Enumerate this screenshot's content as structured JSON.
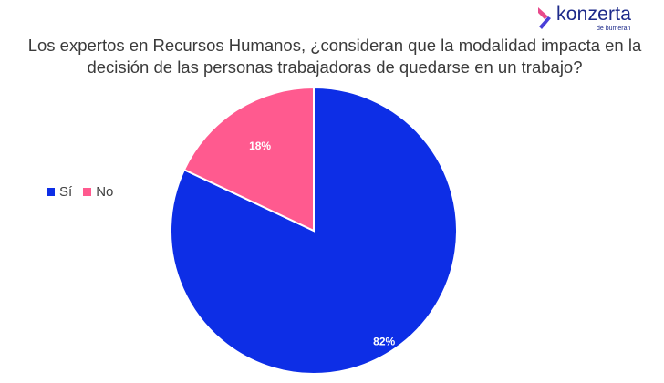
{
  "logo": {
    "wordmark": "konzerta",
    "sub": "de bumeran",
    "colors": {
      "mark_top": "#e84a8c",
      "mark_bottom": "#4a3fd8",
      "text": "#1d2a8a"
    }
  },
  "chart_data": {
    "type": "pie",
    "title": "Los expertos en Recursos Humanos, ¿consideran que la modalidad impacta en la decisión de las personas trabajadoras de quedarse en un trabajo?",
    "legend_position": "left",
    "slices": [
      {
        "label": "Sí",
        "value": 82,
        "display": "82%",
        "color": "#0d2ee6"
      },
      {
        "label": "No",
        "value": 18,
        "display": "18%",
        "color": "#ff5a8f"
      }
    ]
  }
}
